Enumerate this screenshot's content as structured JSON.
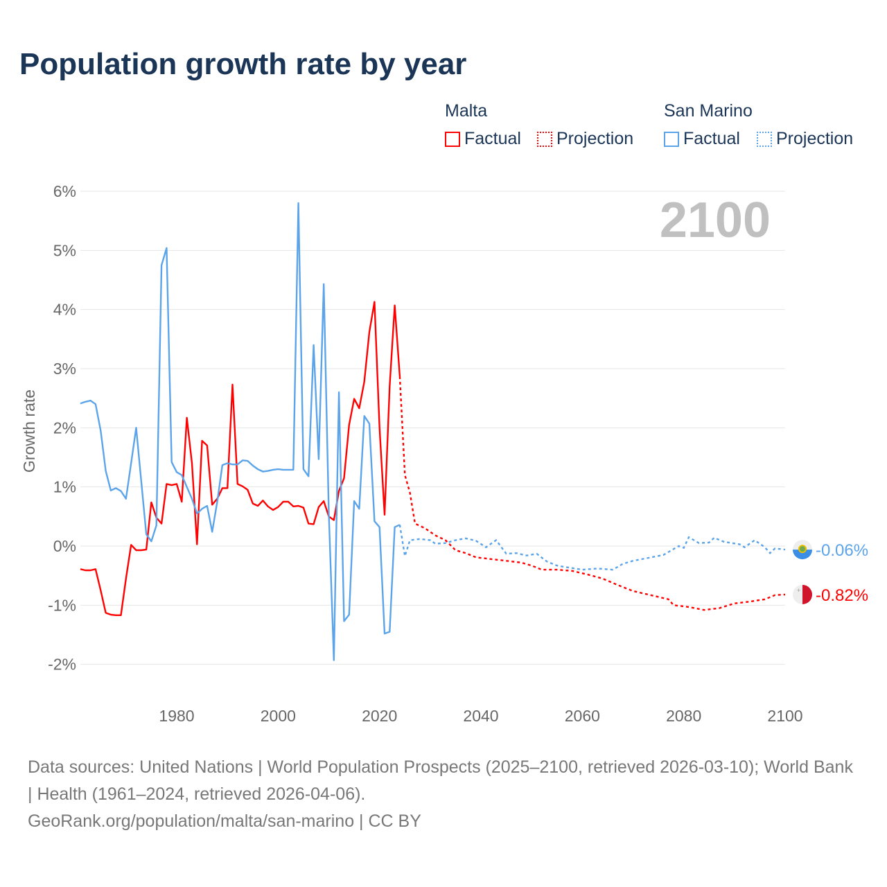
{
  "title": "Population growth rate by year",
  "legend": {
    "groups": [
      {
        "name": "Malta",
        "color": "#ff0000",
        "factual": "Factual",
        "projection": "Projection"
      },
      {
        "name": "San Marino",
        "color": "#5ba4ea",
        "factual": "Factual",
        "projection": "Projection"
      }
    ]
  },
  "year_label": "2100",
  "footer": {
    "sources": "Data sources: United Nations | World Population Prospects (2025–2100, retrieved 2026-03-10); World Bank | Health (1961–2024, retrieved 2026-04-06).",
    "link": "GeoRank.org/population/malta/san-marino | CC BY"
  },
  "chart_data": {
    "type": "line",
    "title": "Population growth rate by year",
    "xlabel": "",
    "ylabel": "Growth rate",
    "xlim": [
      1961,
      2100
    ],
    "ylim": [
      -2,
      6
    ],
    "x_ticks": [
      1980,
      2000,
      2020,
      2040,
      2060,
      2080,
      2100
    ],
    "x_tick_labels": [
      "1980",
      "2000",
      "2020",
      "2040",
      "2060",
      "2080",
      "2100"
    ],
    "y_ticks": [
      6,
      5,
      4,
      3,
      2,
      1,
      0,
      -1,
      -2
    ],
    "y_tick_labels": [
      "6%",
      "5%",
      "4%",
      "3%",
      "2%",
      "1%",
      "0%",
      "-1%",
      "-2%"
    ],
    "grid": true,
    "series": [
      {
        "name": "Malta",
        "color": "#ff0000",
        "end_label": "-0.82%",
        "flag": "malta-flag",
        "factual": {
          "start": 1961,
          "values": [
            -0.39,
            -0.41,
            -0.41,
            -0.39,
            -0.75,
            -1.13,
            -1.16,
            -1.17,
            -1.17,
            -0.55,
            0.02,
            -0.07,
            -0.07,
            -0.06,
            0.74,
            0.48,
            0.38,
            1.05,
            1.03,
            1.05,
            0.75,
            2.17,
            1.4,
            0.03,
            1.78,
            1.7,
            0.7,
            0.8,
            0.98,
            0.98,
            2.73,
            1.05,
            1.01,
            0.95,
            0.72,
            0.68,
            0.77,
            0.67,
            0.61,
            0.66,
            0.75,
            0.75,
            0.67,
            0.68,
            0.65,
            0.38,
            0.37,
            0.66,
            0.76,
            0.5,
            0.44,
            0.93,
            1.15,
            2.05,
            2.49,
            2.33,
            2.78,
            3.62,
            4.13,
            2.0,
            0.53,
            2.7,
            4.07,
            2.87
          ]
        },
        "projection": {
          "x": [
            2024,
            2025,
            2026,
            2027,
            2029,
            2031,
            2033,
            2035,
            2037,
            2039,
            2042,
            2045,
            2048,
            2050,
            2052,
            2055,
            2058,
            2061,
            2064,
            2067,
            2070,
            2074,
            2077,
            2078,
            2081,
            2084,
            2087,
            2090,
            2093,
            2096,
            2098,
            2100
          ],
          "y": [
            2.87,
            1.2,
            0.9,
            0.38,
            0.3,
            0.18,
            0.1,
            -0.07,
            -0.12,
            -0.19,
            -0.22,
            -0.25,
            -0.28,
            -0.33,
            -0.4,
            -0.4,
            -0.42,
            -0.48,
            -0.55,
            -0.66,
            -0.76,
            -0.84,
            -0.9,
            -1.0,
            -1.03,
            -1.08,
            -1.05,
            -0.97,
            -0.94,
            -0.9,
            -0.83,
            -0.82
          ]
        }
      },
      {
        "name": "San Marino",
        "color": "#5ba4ea",
        "end_label": "-0.06%",
        "flag": "san-marino-flag",
        "factual": {
          "start": 1961,
          "values": [
            2.41,
            2.44,
            2.46,
            2.4,
            1.95,
            1.27,
            0.94,
            0.98,
            0.93,
            0.8,
            1.4,
            2.0,
            1.1,
            0.2,
            0.08,
            0.35,
            4.75,
            5.04,
            1.42,
            1.25,
            1.2,
            1.0,
            0.8,
            0.55,
            0.63,
            0.68,
            0.24,
            0.75,
            1.37,
            1.4,
            1.38,
            1.38,
            1.45,
            1.44,
            1.36,
            1.3,
            1.26,
            1.27,
            1.29,
            1.3,
            1.29,
            1.29,
            1.29,
            5.8,
            1.3,
            1.18,
            3.4,
            1.47,
            4.43,
            0.55,
            -1.93,
            2.6,
            -1.27,
            -1.16,
            0.76,
            0.63,
            2.2,
            2.07,
            0.42,
            0.32,
            -1.48,
            -1.45,
            0.32,
            0.36
          ]
        },
        "projection": {
          "x": [
            2024,
            2025,
            2026,
            2028,
            2030,
            2031,
            2033,
            2035,
            2037,
            2039,
            2041,
            2043,
            2045,
            2047,
            2049,
            2051,
            2053,
            2055,
            2057,
            2060,
            2063,
            2066,
            2068,
            2070,
            2073,
            2076,
            2079,
            2080,
            2081,
            2083,
            2085,
            2086,
            2088,
            2091,
            2092,
            2094,
            2096,
            2097,
            2098,
            2100
          ],
          "y": [
            0.36,
            -0.17,
            0.1,
            0.12,
            0.1,
            0.04,
            0.05,
            0.1,
            0.13,
            0.09,
            -0.02,
            0.1,
            -0.13,
            -0.12,
            -0.16,
            -0.13,
            -0.26,
            -0.33,
            -0.36,
            -0.4,
            -0.38,
            -0.4,
            -0.3,
            -0.25,
            -0.2,
            -0.15,
            0.0,
            -0.03,
            0.15,
            0.05,
            0.06,
            0.14,
            0.07,
            0.03,
            -0.02,
            0.1,
            -0.02,
            -0.12,
            -0.04,
            -0.06
          ]
        }
      }
    ]
  }
}
